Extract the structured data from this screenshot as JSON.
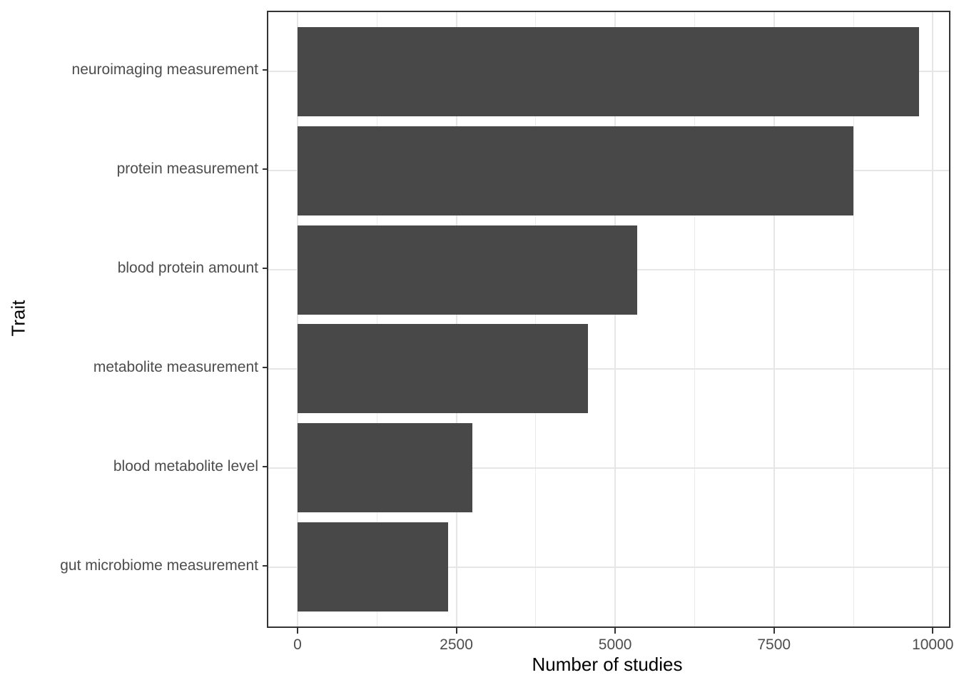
{
  "chart_data": {
    "type": "bar",
    "orientation": "horizontal",
    "title": "",
    "xlabel": "Number of studies",
    "ylabel": "Trait",
    "categories": [
      "neuroimaging measurement",
      "protein measurement",
      "blood protein amount",
      "metabolite measurement",
      "blood metabolite level",
      "gut microbiome measurement"
    ],
    "values": [
      9780,
      8750,
      5350,
      4570,
      2750,
      2370
    ],
    "x_ticks": [
      0,
      2500,
      5000,
      7500,
      10000
    ],
    "x_minor_ticks": [
      1250,
      3750,
      6250,
      8750
    ],
    "xlim": [
      -460,
      10255
    ],
    "grid": "major-and-minor vertical, major horizontal at category centers",
    "legend": "none",
    "colors": {
      "bar_fill": "#484848",
      "panel_border": "#333333",
      "grid_major": "#E6E6E6",
      "grid_minor": "#EBEBEB",
      "tick_label": "#4D4D4D",
      "axis_title": "#000000",
      "background": "#FFFFFF"
    }
  }
}
